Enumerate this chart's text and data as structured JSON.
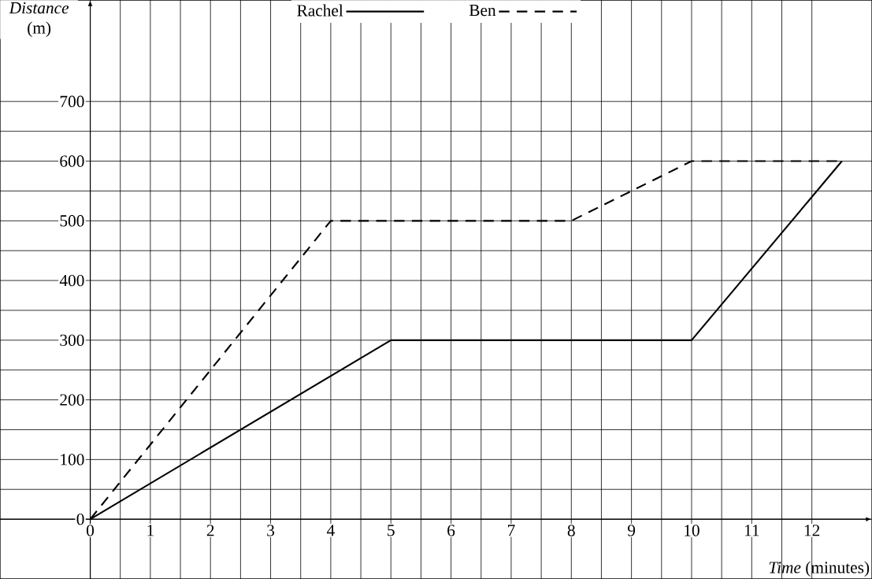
{
  "chart_data": {
    "type": "line",
    "xlabel": "*Time* (minutes)",
    "ylabel": "*Distance* (m)",
    "series": [
      {
        "name": "Rachel",
        "color": "#000000",
        "line_style": "solid",
        "x": [
          0,
          5,
          10,
          12.5
        ],
        "values": [
          0,
          300,
          300,
          600
        ]
      },
      {
        "name": "Ben",
        "color": "#000000",
        "line_style": "dashed",
        "x": [
          0,
          4,
          8,
          10,
          12.5
        ],
        "values": [
          0,
          500,
          500,
          600,
          600
        ]
      }
    ],
    "xlim": [
      -1.5,
      13
    ],
    "ylim": [
      -100,
      870
    ],
    "xticks": [
      0,
      1,
      2,
      3,
      4,
      5,
      6,
      7,
      8,
      9,
      10,
      11,
      12
    ],
    "yticks": [
      0,
      100,
      200,
      300,
      400,
      500,
      600,
      700
    ],
    "grid": true,
    "legend": "top",
    "marker": "none"
  }
}
